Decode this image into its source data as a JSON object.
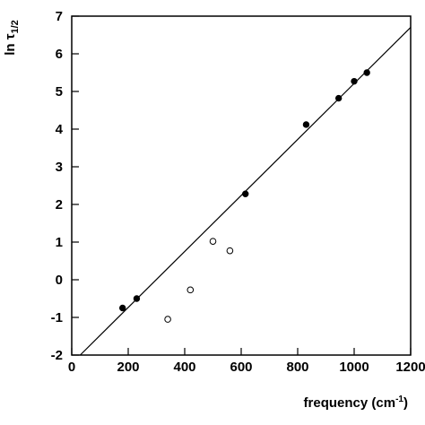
{
  "chart_data": {
    "type": "scatter",
    "ylabel": "ln τ",
    "ylabel_sub": "1/2",
    "xlabel": "frequency (cm",
    "xlabel_sup": "-1",
    "xlabel_end": ")",
    "xlim": [
      0,
      1200
    ],
    "xticks": [
      0,
      200,
      400,
      600,
      800,
      1000,
      1200
    ],
    "ylim": [
      -2,
      7
    ],
    "yticks": [
      -2,
      -1,
      0,
      1,
      2,
      3,
      4,
      5,
      6,
      7
    ],
    "series": [
      {
        "style": "filled",
        "color": "#000000",
        "x": [
          180,
          230,
          615,
          830,
          945,
          1000,
          1045
        ],
        "values": [
          -0.75,
          -0.5,
          2.28,
          4.12,
          4.82,
          5.27,
          5.5
        ]
      },
      {
        "style": "open",
        "color": "#000000",
        "x": [
          340,
          420,
          500,
          560
        ],
        "values": [
          -1.05,
          -0.27,
          1.02,
          0.77
        ]
      },
      {
        "style": "line",
        "color": "#000000",
        "x": [
          30,
          1200
        ],
        "values": [
          -2,
          6.7
        ]
      }
    ]
  }
}
